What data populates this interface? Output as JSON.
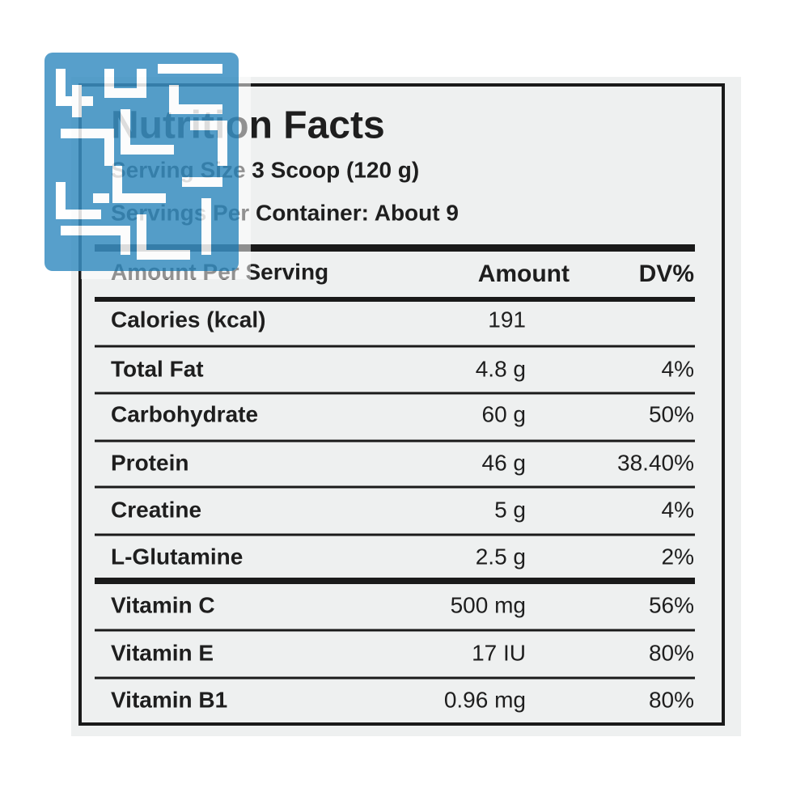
{
  "header": {
    "title": "Nutrition Facts",
    "serving_size": "Serving Size 3 Scoop (120 g)",
    "servings_per_container": "Servings Per Container:  About 9"
  },
  "table": {
    "columns": [
      "Amount Per Serving",
      "Amount",
      "DV%"
    ],
    "rows": [
      [
        "Calories (kcal)",
        "191"
      ],
      [
        "Total Fat",
        "4.8 g",
        "4%"
      ],
      [
        "Carbohydrate",
        "60 g",
        "50%"
      ],
      [
        "Protein",
        "46 g",
        "38.40%"
      ],
      [
        "Creatine",
        "5 g",
        "4%"
      ],
      [
        "L-Glutamine",
        "2.5 g",
        "2%"
      ],
      [
        "Vitamin C",
        "500 mg",
        "56%"
      ],
      [
        "Vitamin E",
        "17 IU",
        "80%"
      ],
      [
        "Vitamin B1",
        "0.96 mg",
        "80%"
      ]
    ]
  }
}
